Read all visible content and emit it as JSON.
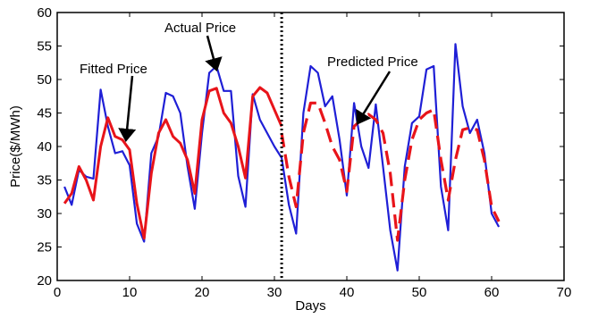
{
  "chart_data": {
    "type": "line",
    "title": "",
    "xlabel": "Days",
    "ylabel": "Price($/MWh)",
    "xlim": [
      0,
      70
    ],
    "ylim": [
      20,
      60
    ],
    "xticks": [
      0,
      10,
      20,
      30,
      40,
      50,
      60,
      70
    ],
    "yticks": [
      20,
      25,
      30,
      35,
      40,
      45,
      50,
      55,
      60
    ],
    "grid": false,
    "colors": {
      "actual": "#1f1fd6",
      "fitted": "#e8141a",
      "predicted": "#e8141a",
      "divider": "#000000"
    },
    "series": [
      {
        "name": "Actual Price",
        "x": [
          1,
          2,
          3,
          4,
          5,
          6,
          7,
          8,
          9,
          10,
          11,
          12,
          13,
          14,
          15,
          16,
          17,
          18,
          19,
          20,
          21,
          22,
          23,
          24,
          25,
          26,
          27,
          28,
          29,
          30,
          31,
          32,
          33,
          34,
          35,
          36,
          37,
          38,
          39,
          40,
          41,
          42,
          43,
          44,
          45,
          46,
          47,
          48,
          49,
          50,
          51,
          52,
          53,
          54,
          55,
          56,
          57,
          58,
          59,
          60,
          61
        ],
        "y": [
          34,
          31.3,
          36.5,
          35.5,
          35.2,
          48.5,
          43,
          39,
          39.3,
          37.2,
          28.5,
          25.8,
          39,
          41.5,
          48,
          47.5,
          45,
          37,
          30.7,
          42,
          51,
          52,
          48.3,
          48.3,
          35.6,
          31,
          47.8,
          44,
          42,
          40,
          38.3,
          31.3,
          27,
          45,
          52,
          51,
          46,
          47.5,
          41,
          32.7,
          46.5,
          40,
          36.8,
          46.3,
          37,
          27.5,
          21.5,
          37,
          43.5,
          44.5,
          51.5,
          52,
          34,
          27.5,
          55.3,
          46,
          42,
          44,
          39,
          30,
          28
        ]
      },
      {
        "name": "Fitted Price",
        "x": [
          1,
          2,
          3,
          4,
          5,
          6,
          7,
          8,
          9,
          10,
          11,
          12,
          13,
          14,
          15,
          16,
          17,
          18,
          19,
          20,
          21,
          22,
          23,
          24,
          25,
          26,
          27,
          28,
          29,
          30,
          31
        ],
        "y": [
          31.5,
          33,
          37,
          35,
          32,
          40,
          44.3,
          41.5,
          41,
          39.5,
          31.5,
          26.3,
          36,
          42,
          44,
          41.5,
          40.5,
          38,
          33,
          44,
          48.3,
          48.7,
          45,
          43.5,
          40,
          35.3,
          47.5,
          48.8,
          48,
          45.5,
          43
        ]
      },
      {
        "name": "Predicted Price",
        "x": [
          31,
          32,
          33,
          34,
          35,
          36,
          37,
          38,
          39,
          40,
          41,
          42,
          43,
          44,
          45,
          46,
          47,
          48,
          49,
          50,
          51,
          52,
          53,
          54,
          55,
          56,
          57,
          58,
          59,
          60,
          61
        ],
        "y": [
          42,
          35.5,
          31,
          42,
          46.5,
          46.5,
          43.5,
          40,
          38,
          33.3,
          43,
          44,
          44.8,
          44,
          42,
          36,
          26,
          35,
          41,
          44,
          45,
          45.5,
          38,
          32,
          38,
          42.5,
          42.8,
          42.5,
          38,
          31,
          28.8
        ]
      }
    ],
    "divider_x": 31,
    "annotations": [
      {
        "text": "Actual Price",
        "point": [
          22,
          51.5
        ]
      },
      {
        "text": "Fitted Price",
        "point": [
          9.5,
          41
        ]
      },
      {
        "text": "Predicted Price",
        "point": [
          41.5,
          43.5
        ]
      }
    ]
  }
}
